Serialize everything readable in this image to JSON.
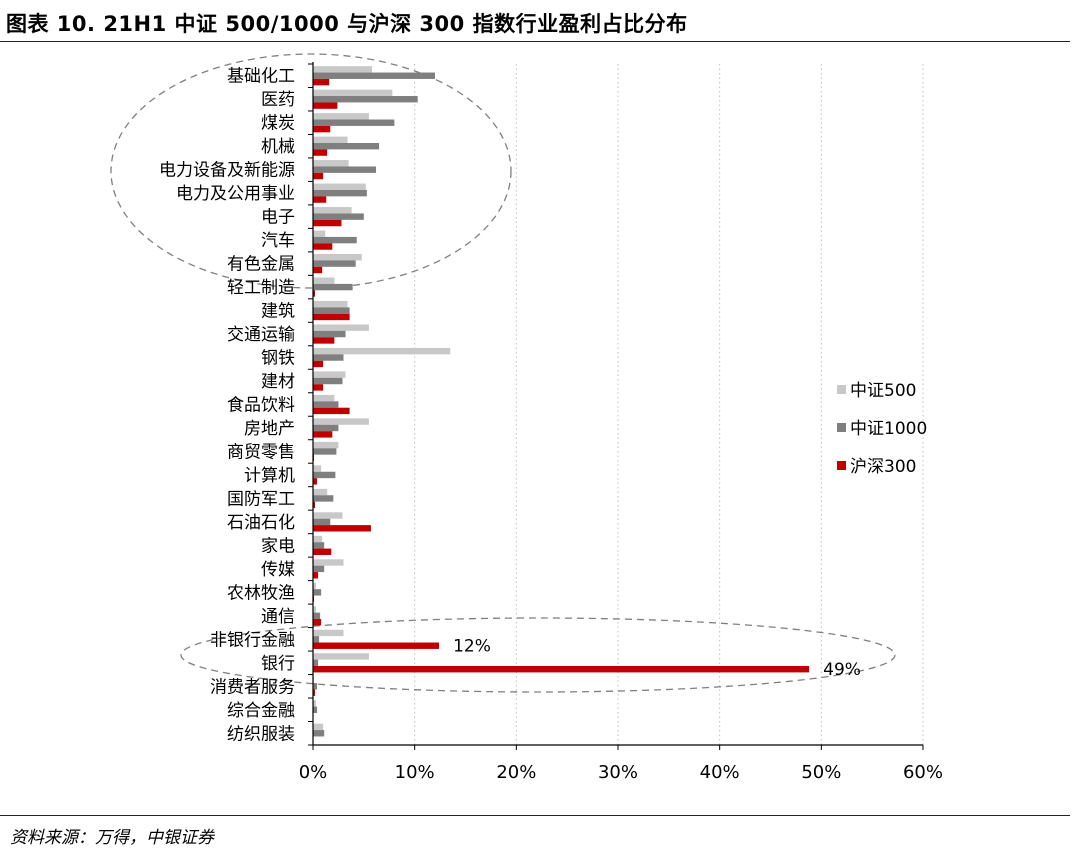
{
  "header": {
    "title": "图表 10. 21H1 中证 500/1000 与沪深 300 指数行业盈利占比分布"
  },
  "footer": {
    "source": "资料来源：万得，中银证券"
  },
  "chart_data": {
    "type": "bar",
    "orientation": "horizontal",
    "title": "",
    "xlabel": "",
    "ylabel": "",
    "xlim": [
      0,
      0.6
    ],
    "x_ticks": [
      "0%",
      "10%",
      "20%",
      "30%",
      "40%",
      "50%",
      "60%"
    ],
    "grid": "vertical dotted",
    "legend_position": "right",
    "categories": [
      "基础化工",
      "医药",
      "煤炭",
      "机械",
      "电力设备及新能源",
      "电力及公用事业",
      "电子",
      "汽车",
      "有色金属",
      "轻工制造",
      "建筑",
      "交通运输",
      "钢铁",
      "建材",
      "食品饮料",
      "房地产",
      "商贸零售",
      "计算机",
      "国防军工",
      "石油石化",
      "家电",
      "传媒",
      "农林牧渔",
      "通信",
      "非银行金融",
      "银行",
      "消费者服务",
      "综合金融",
      "纺织服装"
    ],
    "series": [
      {
        "name": "中证500",
        "color": "#c8c8c8",
        "values": [
          0.058,
          0.078,
          0.055,
          0.034,
          0.035,
          0.052,
          0.038,
          0.012,
          0.048,
          0.021,
          0.034,
          0.055,
          0.135,
          0.032,
          0.021,
          0.055,
          0.025,
          0.008,
          0.014,
          0.029,
          0.009,
          0.03,
          0.003,
          0.003,
          0.03,
          0.055,
          0.001,
          0.003,
          0.01
        ]
      },
      {
        "name": "中证1000",
        "color": "#7f7f7f",
        "values": [
          0.12,
          0.103,
          0.08,
          0.065,
          0.062,
          0.053,
          0.05,
          0.043,
          0.042,
          0.039,
          0.036,
          0.032,
          0.03,
          0.029,
          0.025,
          0.025,
          0.023,
          0.022,
          0.02,
          0.017,
          0.011,
          0.011,
          0.008,
          0.007,
          0.006,
          0.005,
          0.004,
          0.004,
          0.011
        ]
      },
      {
        "name": "沪深300",
        "color": "#c00000",
        "values": [
          0.016,
          0.024,
          0.017,
          0.014,
          0.01,
          0.013,
          0.028,
          0.019,
          0.009,
          0.002,
          0.036,
          0.021,
          0.01,
          0.01,
          0.036,
          0.019,
          0.001,
          0.004,
          0.002,
          0.057,
          0.018,
          0.005,
          0.001,
          0.008,
          0.124,
          0.488,
          0.002,
          0.0,
          0.0
        ]
      }
    ],
    "annotations": [
      {
        "category": "非银行金融",
        "series": "沪深300",
        "text": "12%"
      },
      {
        "category": "银行",
        "series": "沪深300",
        "text": "49%"
      }
    ]
  }
}
